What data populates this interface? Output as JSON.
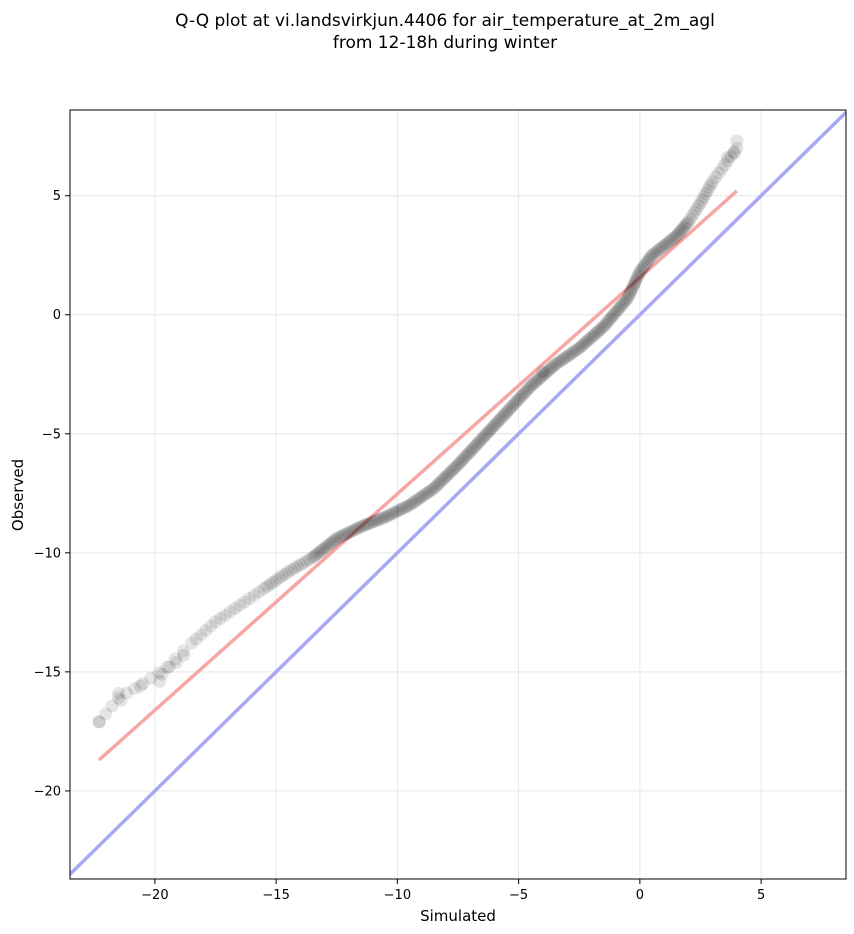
{
  "chart_data": {
    "type": "scatter",
    "title_lines": [
      "Q-Q plot at vi.landsvirkjun.4406 for air_temperature_at_2m_agl",
      "from 12-18h during winter"
    ],
    "xlabel": "Simulated",
    "ylabel": "Observed",
    "xlim": [
      -23.5,
      8.5
    ],
    "ylim": [
      -23.7,
      8.6
    ],
    "xticks": [
      -20,
      -15,
      -10,
      -5,
      0,
      5
    ],
    "yticks": [
      -20,
      -15,
      -10,
      -5,
      0,
      5
    ],
    "xtick_labels": [
      "−20",
      "−15",
      "−10",
      "−5",
      "0",
      "5"
    ],
    "ytick_labels": [
      "−20",
      "−15",
      "−10",
      "−5",
      "0",
      "5"
    ],
    "grid": true,
    "point_color": "#000000",
    "fit_line": {
      "color": "#f7a6a6",
      "x": [
        -22.3,
        4.0
      ],
      "y": [
        -18.7,
        5.2
      ]
    },
    "identity_line": {
      "color": "#a8a8f5",
      "x": [
        -23.5,
        8.5
      ],
      "y": [
        -23.5,
        8.5
      ]
    },
    "qq_curve": {
      "x": [
        -22.3,
        -21.5,
        -20.5,
        -19.5,
        -18.5,
        -17.5,
        -16.5,
        -15.5,
        -14.5,
        -13.5,
        -12.5,
        -11.5,
        -10.5,
        -9.5,
        -8.5,
        -7.5,
        -6.5,
        -5.5,
        -4.5,
        -3.5,
        -2.5,
        -1.5,
        -0.5,
        0.0,
        0.5,
        1.0,
        1.5,
        2.0,
        2.5,
        3.0,
        3.5,
        4.0
      ],
      "y": [
        -17.1,
        -16.1,
        -15.5,
        -14.8,
        -13.8,
        -12.9,
        -12.2,
        -11.5,
        -10.8,
        -10.2,
        -9.4,
        -8.9,
        -8.5,
        -8.0,
        -7.3,
        -6.3,
        -5.2,
        -4.1,
        -3.0,
        -2.1,
        -1.4,
        -0.5,
        0.7,
        1.8,
        2.5,
        2.9,
        3.3,
        3.9,
        4.7,
        5.6,
        6.3,
        7.0
      ]
    },
    "tail_points": {
      "x": [
        -22.3,
        -21.4,
        -21.5,
        -20.6,
        -19.8,
        -19.7,
        -19.4,
        -19.1,
        -18.8,
        -4.0,
        4.0,
        3.9,
        3.6
      ],
      "y": [
        -17.1,
        -16.2,
        -15.9,
        -15.6,
        -15.4,
        -15.1,
        -14.8,
        -14.6,
        -14.3,
        -2.4,
        7.3,
        6.8,
        6.6
      ]
    }
  }
}
